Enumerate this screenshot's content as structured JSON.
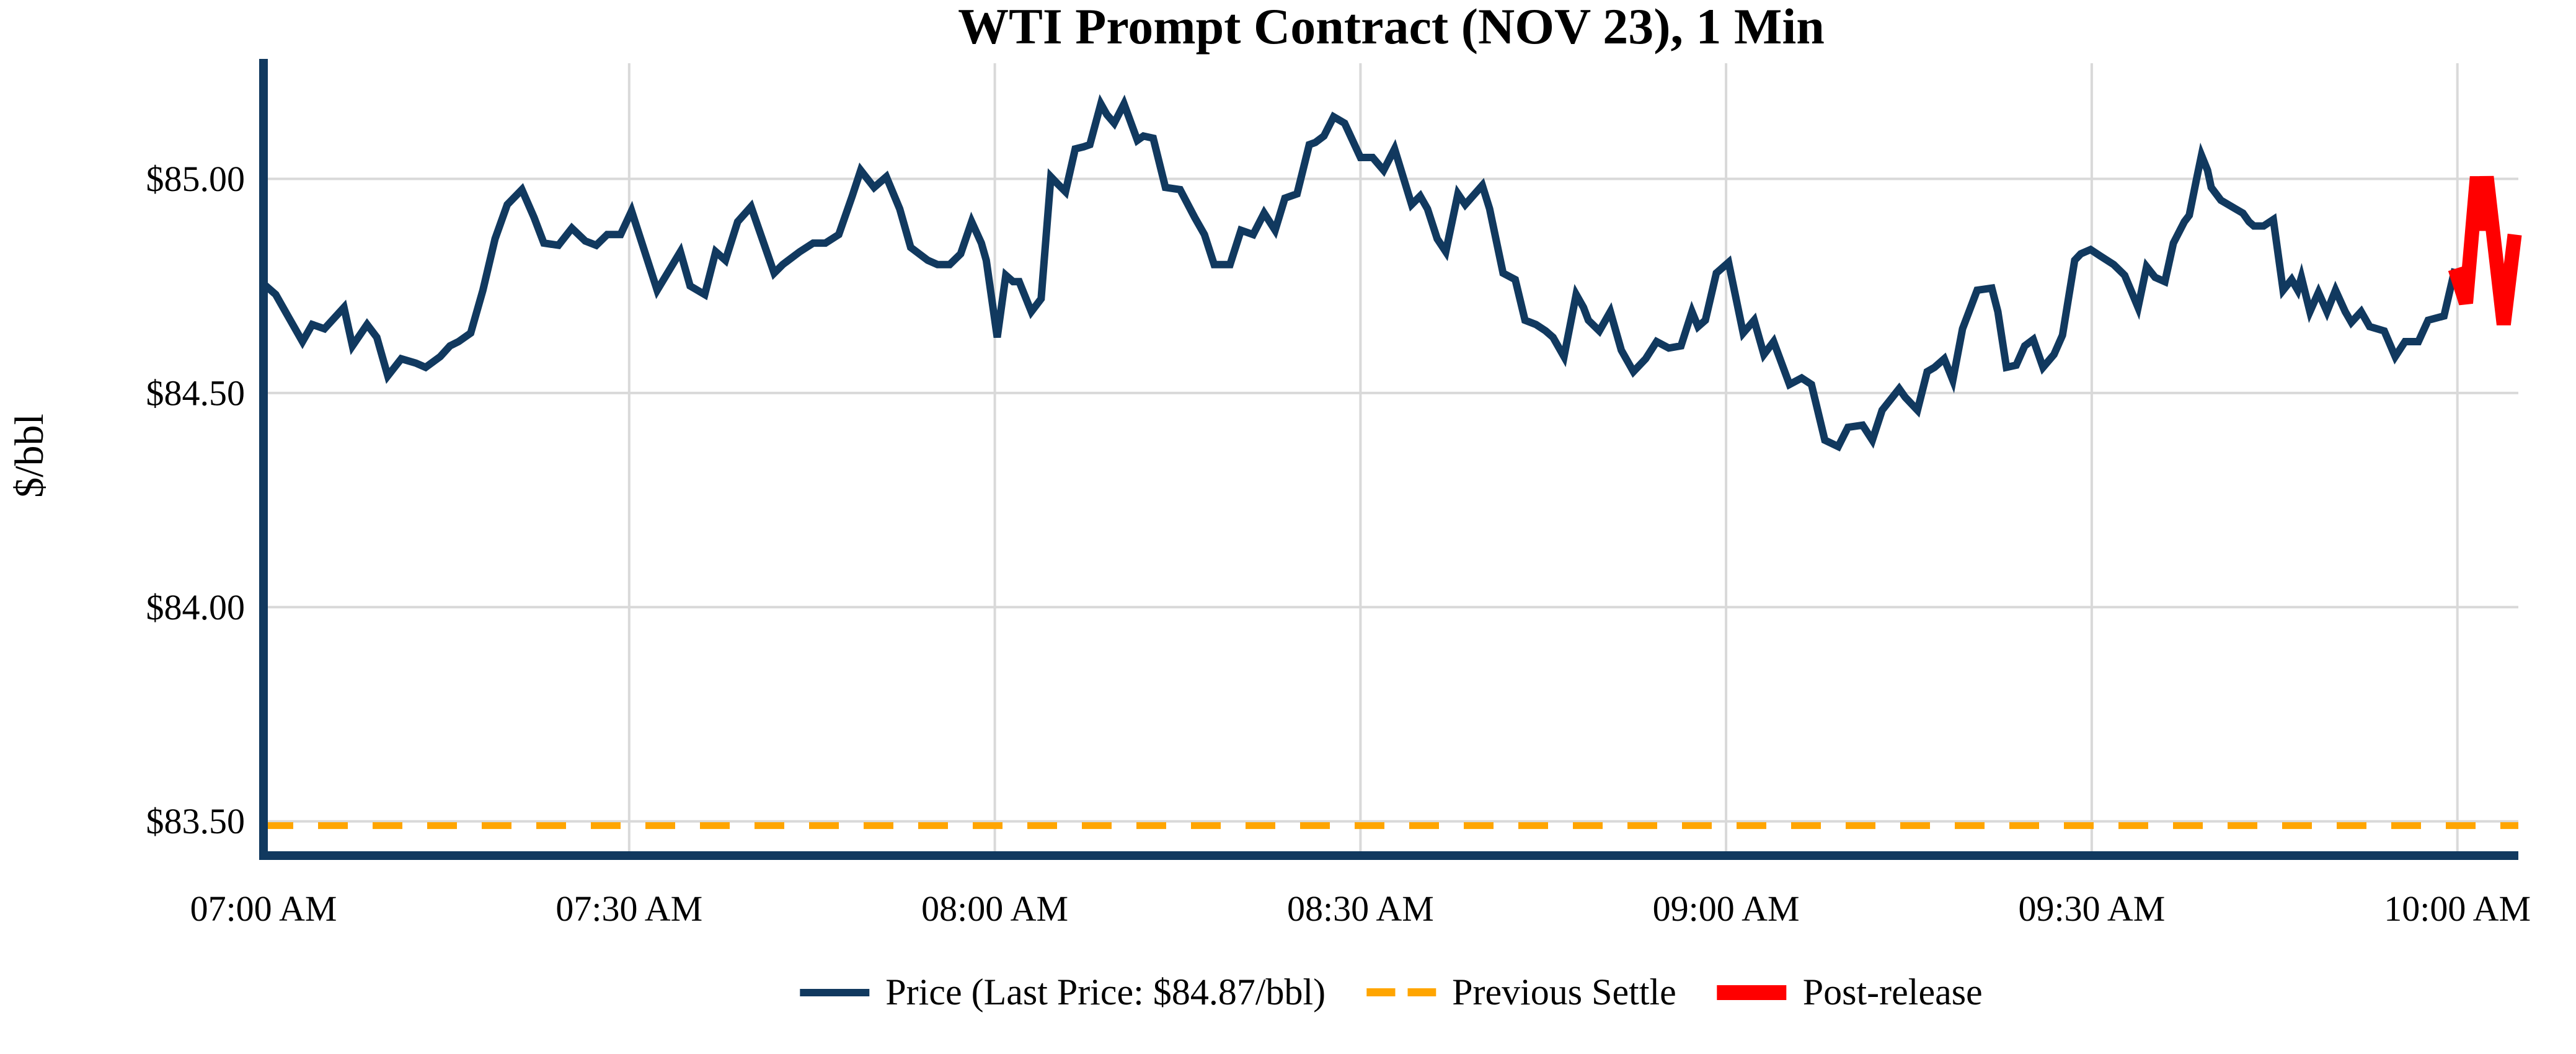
{
  "chart_data": {
    "type": "line",
    "title": "WTI Prompt Contract (NOV 23), 1 Min",
    "ylabel": "$/bbl",
    "x_unit": "minutes_after_07:00_AM",
    "xlim": [
      0,
      185
    ],
    "ylim": [
      83.42,
      85.27
    ],
    "grid": true,
    "x_ticks": {
      "positions": [
        0,
        30,
        60,
        90,
        120,
        150,
        180
      ],
      "labels": [
        "07:00 AM",
        "07:30 AM",
        "08:00 AM",
        "08:30 AM",
        "09:00 AM",
        "09:30 AM",
        "10:00 AM"
      ]
    },
    "y_ticks": {
      "values": [
        85.0,
        84.5,
        84.0,
        83.5
      ],
      "labels": [
        "$85.00",
        "$84.50",
        "$84.00",
        "$83.50"
      ]
    },
    "colors": {
      "grid": "#D9D9D9",
      "spine": "#11395F",
      "text": "#000000"
    },
    "previous_settle": {
      "label": "Previous Settle",
      "value": 83.49,
      "color": "#FFA500",
      "style": "dashed"
    },
    "last_price": "$84.87/bbl",
    "legend_position": "bottom-center",
    "series": [
      {
        "name": "Price (Last Price: $84.87/bbl)",
        "color": "#11395F",
        "style": "solid",
        "width": 12,
        "points": [
          [
            0,
            84.755
          ],
          [
            1,
            84.73
          ],
          [
            2,
            84.68
          ],
          [
            3.2,
            84.62
          ],
          [
            4,
            84.66
          ],
          [
            5,
            84.65
          ],
          [
            6.6,
            84.7
          ],
          [
            7.3,
            84.61
          ],
          [
            8.5,
            84.66
          ],
          [
            9.3,
            84.63
          ],
          [
            10.2,
            84.54
          ],
          [
            11.3,
            84.58
          ],
          [
            12.5,
            84.57
          ],
          [
            13.3,
            84.56
          ],
          [
            14.5,
            84.585
          ],
          [
            15.3,
            84.61
          ],
          [
            16,
            84.62
          ],
          [
            17,
            84.64
          ],
          [
            18,
            84.74
          ],
          [
            19,
            84.86
          ],
          [
            20,
            84.94
          ],
          [
            21.2,
            84.975
          ],
          [
            22.2,
            84.91
          ],
          [
            23,
            84.85
          ],
          [
            24.2,
            84.845
          ],
          [
            25.3,
            84.885
          ],
          [
            26.4,
            84.855
          ],
          [
            27.3,
            84.845
          ],
          [
            28.2,
            84.87
          ],
          [
            29.3,
            84.87
          ],
          [
            30.2,
            84.925
          ],
          [
            32.3,
            84.74
          ],
          [
            34.2,
            84.83
          ],
          [
            35,
            84.75
          ],
          [
            36.2,
            84.73
          ],
          [
            37.1,
            84.83
          ],
          [
            37.9,
            84.81
          ],
          [
            38.9,
            84.9
          ],
          [
            40,
            84.935
          ],
          [
            41.9,
            84.78
          ],
          [
            42.6,
            84.8
          ],
          [
            44,
            84.83
          ],
          [
            45.1,
            84.85
          ],
          [
            46.1,
            84.85
          ],
          [
            47.2,
            84.87
          ],
          [
            48.3,
            84.96
          ],
          [
            49,
            85.02
          ],
          [
            50.1,
            84.98
          ],
          [
            51.1,
            85.005
          ],
          [
            52.2,
            84.93
          ],
          [
            53.1,
            84.84
          ],
          [
            54.5,
            84.81
          ],
          [
            55.3,
            84.8
          ],
          [
            56.3,
            84.8
          ],
          [
            57.2,
            84.825
          ],
          [
            58.1,
            84.9
          ],
          [
            58.9,
            84.85
          ],
          [
            59.3,
            84.81
          ],
          [
            60.2,
            84.63
          ],
          [
            60.9,
            84.775
          ],
          [
            61.5,
            84.76
          ],
          [
            62,
            84.76
          ],
          [
            63,
            84.69
          ],
          [
            63.8,
            84.72
          ],
          [
            64.6,
            85.005
          ],
          [
            65.1,
            84.99
          ],
          [
            65.8,
            84.97
          ],
          [
            66.6,
            85.07
          ],
          [
            67.3,
            85.075
          ],
          [
            67.8,
            85.08
          ],
          [
            68.7,
            85.175
          ],
          [
            69.2,
            85.15
          ],
          [
            69.8,
            85.13
          ],
          [
            70.6,
            85.175
          ],
          [
            71.7,
            85.09
          ],
          [
            72.2,
            85.1
          ],
          [
            73,
            85.095
          ],
          [
            74,
            84.98
          ],
          [
            75.2,
            84.975
          ],
          [
            76.4,
            84.91
          ],
          [
            77.2,
            84.87
          ],
          [
            78,
            84.8
          ],
          [
            79.3,
            84.8
          ],
          [
            80.2,
            84.88
          ],
          [
            81.2,
            84.87
          ],
          [
            82.1,
            84.92
          ],
          [
            83,
            84.88
          ],
          [
            83.8,
            84.955
          ],
          [
            84.8,
            84.965
          ],
          [
            85.8,
            85.08
          ],
          [
            86.3,
            85.085
          ],
          [
            87,
            85.1
          ],
          [
            87.8,
            85.145
          ],
          [
            88.7,
            85.13
          ],
          [
            90,
            85.05
          ],
          [
            91,
            85.05
          ],
          [
            91.9,
            85.02
          ],
          [
            92.8,
            85.07
          ],
          [
            94.2,
            84.94
          ],
          [
            94.9,
            84.96
          ],
          [
            95.5,
            84.93
          ],
          [
            96.3,
            84.86
          ],
          [
            97,
            84.83
          ],
          [
            98,
            84.965
          ],
          [
            98.6,
            84.94
          ],
          [
            100,
            84.985
          ],
          [
            100.6,
            84.93
          ],
          [
            101.7,
            84.78
          ],
          [
            102.7,
            84.765
          ],
          [
            103.5,
            84.67
          ],
          [
            104.4,
            84.66
          ],
          [
            105.2,
            84.645
          ],
          [
            105.8,
            84.63
          ],
          [
            106.7,
            84.585
          ],
          [
            107.7,
            84.73
          ],
          [
            108.3,
            84.7
          ],
          [
            108.7,
            84.67
          ],
          [
            109.6,
            84.645
          ],
          [
            110.5,
            84.69
          ],
          [
            111.4,
            84.6
          ],
          [
            112.4,
            84.55
          ],
          [
            113.4,
            84.58
          ],
          [
            114.3,
            84.62
          ],
          [
            115.3,
            84.605
          ],
          [
            116.3,
            84.61
          ],
          [
            117.2,
            84.69
          ],
          [
            117.7,
            84.655
          ],
          [
            118.3,
            84.67
          ],
          [
            119.2,
            84.78
          ],
          [
            120.2,
            84.805
          ],
          [
            121.4,
            84.64
          ],
          [
            122.3,
            84.67
          ],
          [
            123.1,
            84.59
          ],
          [
            123.9,
            84.62
          ],
          [
            125.2,
            84.52
          ],
          [
            126.2,
            84.535
          ],
          [
            127,
            84.52
          ],
          [
            128.1,
            84.39
          ],
          [
            129.2,
            84.375
          ],
          [
            130,
            84.42
          ],
          [
            131.2,
            84.425
          ],
          [
            132,
            84.39
          ],
          [
            132.8,
            84.46
          ],
          [
            134.2,
            84.51
          ],
          [
            134.7,
            84.49
          ],
          [
            135.7,
            84.46
          ],
          [
            136.5,
            84.55
          ],
          [
            137.1,
            84.56
          ],
          [
            137.9,
            84.58
          ],
          [
            138.6,
            84.53
          ],
          [
            139.4,
            84.65
          ],
          [
            140.6,
            84.74
          ],
          [
            141.8,
            84.745
          ],
          [
            142.3,
            84.69
          ],
          [
            143,
            84.56
          ],
          [
            143.8,
            84.565
          ],
          [
            144.5,
            84.61
          ],
          [
            145.2,
            84.625
          ],
          [
            146,
            84.56
          ],
          [
            146.9,
            84.59
          ],
          [
            147.6,
            84.635
          ],
          [
            148.6,
            84.81
          ],
          [
            149.1,
            84.825
          ],
          [
            149.9,
            84.835
          ],
          [
            150.7,
            84.82
          ],
          [
            151.8,
            84.8
          ],
          [
            152.7,
            84.775
          ],
          [
            153.8,
            84.7
          ],
          [
            154.5,
            84.795
          ],
          [
            155.2,
            84.77
          ],
          [
            156,
            84.76
          ],
          [
            156.7,
            84.85
          ],
          [
            157.6,
            84.9
          ],
          [
            158,
            84.915
          ],
          [
            158.6,
            85.0
          ],
          [
            159,
            85.055
          ],
          [
            159.5,
            85.02
          ],
          [
            159.8,
            84.98
          ],
          [
            160.6,
            84.95
          ],
          [
            161.8,
            84.93
          ],
          [
            162.4,
            84.92
          ],
          [
            162.9,
            84.9
          ],
          [
            163.3,
            84.89
          ],
          [
            164.1,
            84.89
          ],
          [
            164.9,
            84.905
          ],
          [
            165.7,
            84.74
          ],
          [
            166.4,
            84.765
          ],
          [
            166.9,
            84.74
          ],
          [
            167.2,
            84.77
          ],
          [
            167.9,
            84.69
          ],
          [
            168.6,
            84.735
          ],
          [
            169.3,
            84.69
          ],
          [
            170,
            84.74
          ],
          [
            170.8,
            84.69
          ],
          [
            171.3,
            84.665
          ],
          [
            172.1,
            84.69
          ],
          [
            172.8,
            84.655
          ],
          [
            174,
            84.645
          ],
          [
            174.9,
            84.585
          ],
          [
            175.7,
            84.62
          ],
          [
            176.8,
            84.62
          ],
          [
            177.6,
            84.67
          ],
          [
            178.9,
            84.68
          ],
          [
            179.8,
            84.79
          ]
        ]
      },
      {
        "name": "Post-release",
        "color": "#FF0000",
        "style": "solid",
        "width": 23,
        "points": [
          [
            179.8,
            84.79
          ],
          [
            180.7,
            84.71
          ],
          [
            181.6,
            85.005
          ],
          [
            182,
            84.88
          ],
          [
            182.4,
            85.005
          ],
          [
            183.8,
            84.66
          ],
          [
            184.7,
            84.87
          ]
        ]
      }
    ]
  }
}
